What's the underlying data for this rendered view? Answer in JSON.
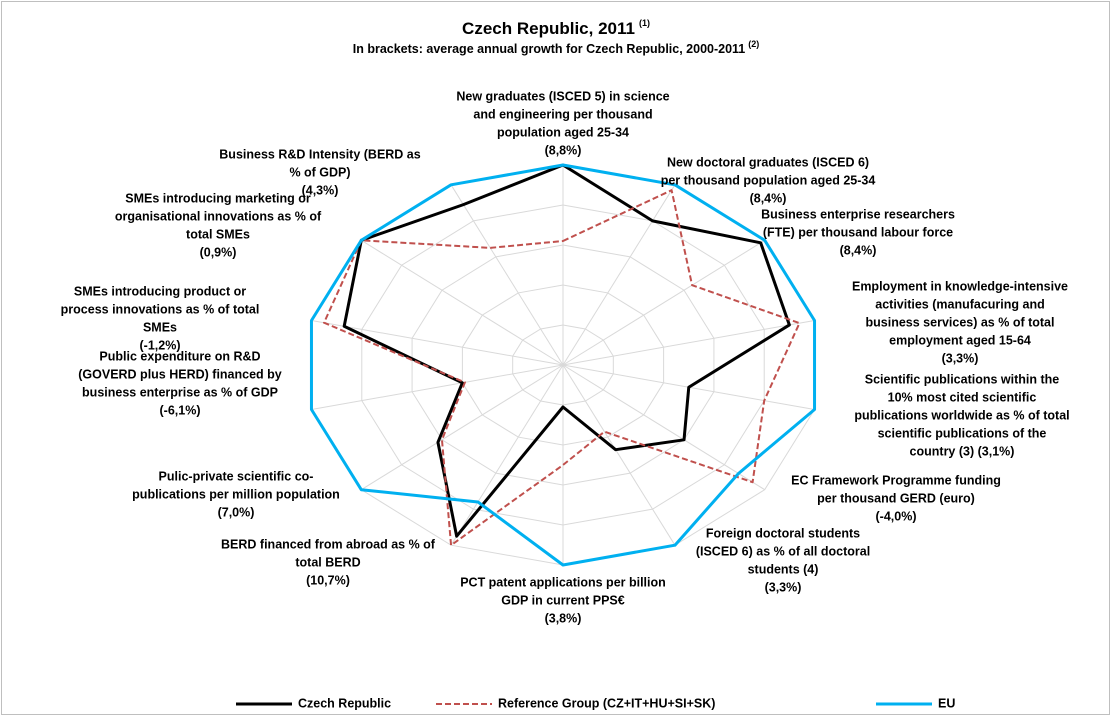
{
  "chart_data": {
    "type": "radar",
    "title": "Czech Republic, 2011",
    "title_note": "(1)",
    "subtitle": "In brackets: average annual growth for Czech Republic, 2000-2011",
    "subtitle_note": "(2)",
    "categories": [
      [
        "New graduates (ISCED 5) in science",
        "and engineering per thousand",
        "population aged 25-34",
        "(8,8%)"
      ],
      [
        "New doctoral graduates (ISCED 6)",
        "per thousand population aged 25-34",
        "(8,4%)"
      ],
      [
        "Business enterprise researchers",
        "(FTE) per thousand labour force",
        "(8,4%)"
      ],
      [
        "Employment in knowledge-intensive",
        "activities (manufacuring and",
        "business services) as % of total",
        "employment aged 15-64",
        "(3,3%)"
      ],
      [
        "Scientific publications within the",
        "10% most cited scientific",
        "publications worldwide as % of total",
        "scientific publications of the",
        "country (3) (3,1%)"
      ],
      [
        "EC Framework Programme funding",
        "per thousand GERD (euro)",
        "(-4,0%)"
      ],
      [
        "Foreign doctoral students",
        "(ISCED 6) as % of all doctoral",
        "students (4)",
        "(3,3%)"
      ],
      [
        "PCT patent applications per billion",
        "GDP in current PPS€",
        "(3,8%)"
      ],
      [
        "BERD financed from abroad as % of",
        "total BERD",
        "(10,7%)"
      ],
      [
        "Pulic-private scientific co-",
        "publications per million population",
        "(7,0%)"
      ],
      [
        "Public expenditure on R&D",
        "(GOVERD plus HERD) financed by",
        "business enterprise as % of GDP",
        "(-6,1%)"
      ],
      [
        "SMEs introducing product or",
        "process innovations as % of total",
        "SMEs",
        "(-1,2%)"
      ],
      [
        "SMEs introducing marketing or",
        "organisational innovations as % of",
        "total SMEs",
        "(0,9%)"
      ],
      [
        "Business R&D Intensity (BERD as",
        "% of GDP)",
        "(4,3%)"
      ]
    ],
    "series": [
      {
        "name": "Czech Republic",
        "color": "#000000",
        "dash": "solid",
        "values": [
          1.0,
          0.8,
          0.98,
          0.9,
          0.5,
          0.6,
          0.47,
          0.21,
          0.95,
          0.62,
          0.4,
          0.87,
          1.0,
          0.89
        ]
      },
      {
        "name": "Reference Group (CZ+IT+HU+SI+SK)",
        "color": "#c0504d",
        "dash": "dashed",
        "values": [
          0.62,
          0.97,
          0.64,
          0.94,
          0.8,
          0.94,
          0.37,
          0.5,
          1.0,
          0.6,
          0.39,
          0.95,
          1.0,
          0.65
        ]
      },
      {
        "name": "EU",
        "color": "#00b0f0",
        "dash": "solid",
        "values": [
          1.0,
          1.0,
          1.0,
          1.0,
          1.0,
          0.87,
          1.0,
          1.0,
          0.76,
          1.0,
          1.0,
          1.0,
          1.0,
          1.0
        ]
      }
    ],
    "ylim": [
      0,
      1
    ],
    "yticks": [
      0.2,
      0.4,
      0.6,
      0.8,
      1
    ],
    "grid": true,
    "legend": "bottom"
  }
}
